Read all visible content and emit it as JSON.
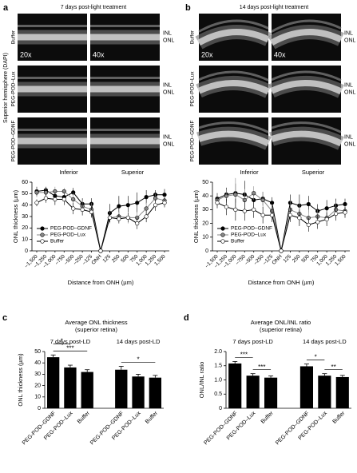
{
  "image_panels": [
    {
      "label": "a",
      "title": "7 days post-light treatment",
      "side_title": "Superior hemisphere (DAPI)",
      "rows": [
        "Buffer",
        "PEG-POD–Lux",
        "PEG-POD–GDNF"
      ],
      "magnifications": [
        "20x",
        "40x"
      ],
      "layers": [
        "INL",
        "ONL"
      ]
    },
    {
      "label": "b",
      "title": "14 days post-light treatment",
      "rows": [
        "Buffer",
        "PEG-POD–Lux",
        "PEG-POD–GDNF"
      ],
      "magnifications": [
        "20x",
        "40x"
      ],
      "layers": [
        "INL",
        "ONL"
      ]
    }
  ],
  "chart_data": [
    {
      "type": "line",
      "regions": [
        "Inferior",
        "Superior"
      ],
      "categories": [
        "–1,500",
        "–1,250",
        "–1,000",
        "–750",
        "–500",
        "–250",
        "–125",
        "ONH",
        "125",
        "250",
        "500",
        "750",
        "1,000",
        "1,250",
        "1,500"
      ],
      "series": [
        {
          "name": "PEG-POD–GDNF",
          "color": "#000000",
          "values": [
            52,
            53,
            48,
            47,
            51,
            41,
            41,
            0,
            33,
            39,
            40,
            42,
            47,
            49,
            49
          ],
          "errors": [
            4,
            3,
            5,
            5,
            4,
            5,
            5,
            0,
            8,
            9,
            8,
            9,
            6,
            4,
            5
          ]
        },
        {
          "name": "PEG-POD–Lux",
          "color": "#888888",
          "values": [
            51,
            51,
            52,
            52,
            45,
            39,
            36,
            0,
            29,
            30,
            29,
            29,
            37,
            46,
            44
          ],
          "errors": [
            4,
            4,
            4,
            3,
            6,
            5,
            6,
            0,
            5,
            4,
            5,
            5,
            5,
            4,
            4
          ]
        },
        {
          "name": "Buffer",
          "color": "#ffffff",
          "values": [
            42,
            46,
            45,
            45,
            37,
            36,
            34,
            0,
            29,
            28,
            29,
            24,
            30,
            40,
            42
          ],
          "errors": [
            3,
            4,
            5,
            5,
            5,
            5,
            5,
            0,
            4,
            4,
            4,
            5,
            5,
            5,
            4
          ]
        }
      ],
      "ylim": [
        0,
        60
      ],
      "yticks": [
        0,
        10,
        20,
        30,
        40,
        50,
        60
      ],
      "ylabel": "ONL thickness (µm)",
      "xlabel": "Distance from ONH (µm)",
      "legend": "lower left"
    },
    {
      "type": "line",
      "regions": [
        "Inferior",
        "Superior"
      ],
      "categories": [
        "–1,500",
        "–1,250",
        "–1,000",
        "–750",
        "–500",
        "–250",
        "–125",
        "ONH",
        "125",
        "250",
        "500",
        "750",
        "1,000",
        "1,250",
        "1,500"
      ],
      "series": [
        {
          "name": "PEG-POD–GDNF",
          "color": "#000000",
          "values": [
            38,
            41,
            42,
            41,
            37,
            38,
            35,
            0,
            35,
            33,
            34,
            29,
            31,
            33,
            34
          ],
          "errors": [
            4,
            5,
            7,
            10,
            6,
            5,
            4,
            0,
            6,
            8,
            6,
            5,
            6,
            5,
            4
          ]
        },
        {
          "name": "PEG-POD–Lux",
          "color": "#888888",
          "values": [
            37,
            40,
            41,
            37,
            42,
            37,
            29,
            0,
            30,
            27,
            24,
            25,
            24,
            30,
            29
          ],
          "errors": [
            4,
            5,
            12,
            8,
            5,
            6,
            5,
            0,
            7,
            8,
            6,
            5,
            5,
            6,
            4
          ]
        },
        {
          "name": "Buffer",
          "color": "#ffffff",
          "values": [
            35,
            32,
            30,
            29,
            30,
            26,
            26,
            0,
            26,
            24,
            19,
            21,
            23,
            27,
            28
          ],
          "errors": [
            4,
            6,
            8,
            7,
            6,
            6,
            5,
            0,
            5,
            6,
            5,
            5,
            5,
            5,
            4
          ]
        }
      ],
      "ylim": [
        0,
        50
      ],
      "yticks": [
        0,
        10,
        20,
        30,
        40,
        50
      ],
      "ylabel": "ONL thickness (µm)",
      "xlabel": "Distance from ONH (µm)",
      "legend": "lower left"
    },
    {
      "type": "bar",
      "panel": "c",
      "title": "Average ONL thickness",
      "subtitle": "(superior retina)",
      "groups": [
        "7 days post-LD",
        "14 days post-LD"
      ],
      "categories": [
        "PEG-POD–GDNF",
        "PEG-POD–Lux",
        "Buffer",
        "PEG-POD–GDNF",
        "PEG-POD–Lux",
        "Buffer"
      ],
      "values": [
        45,
        36,
        32,
        34,
        28,
        27
      ],
      "errors": [
        2,
        2,
        2,
        3,
        2,
        2
      ],
      "color": "#000000",
      "annotations": [
        "*",
        "***",
        "*"
      ],
      "ylim": [
        0,
        50
      ],
      "yticks": [
        0,
        10,
        20,
        30,
        40,
        50
      ],
      "ylabel": "ONL thickness (µm)"
    },
    {
      "type": "bar",
      "panel": "d",
      "title": "Average ONL/INL ratio",
      "subtitle": "(superior retina)",
      "groups": [
        "7 days post-LD",
        "14 days post-LD"
      ],
      "categories": [
        "PEG-POD–GDNF",
        "PEG-POD–Lux",
        "Buffer",
        "PEG-POD–GDNF",
        "PEG-POD–Lux",
        "Buffer"
      ],
      "values": [
        1.58,
        1.15,
        1.08,
        1.48,
        1.15,
        1.1
      ],
      "errors": [
        0.07,
        0.07,
        0.06,
        0.08,
        0.07,
        0.06
      ],
      "color": "#000000",
      "annotations": [
        "***",
        "***",
        "*",
        "**"
      ],
      "ylim": [
        0,
        2
      ],
      "yticks": [
        0,
        0.5,
        {
          "value": 1,
          "label": "1.0"
        },
        1.5,
        {
          "value": 2,
          "label": "2.0"
        }
      ],
      "ylabel": "ONL/INL ratio"
    }
  ]
}
